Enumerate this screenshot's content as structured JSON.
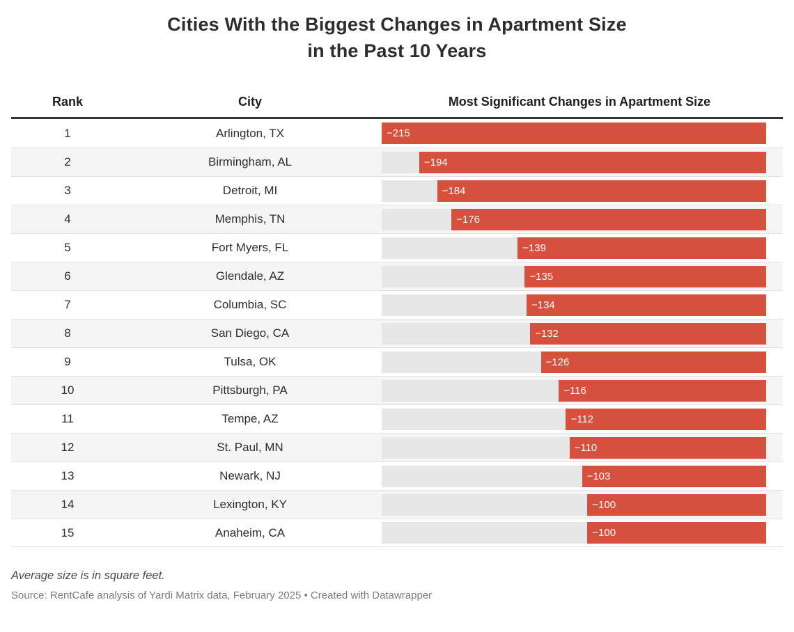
{
  "title": {
    "line1": "Cities With the Biggest Changes in Apartment Size",
    "line2": "in the Past 10 Years"
  },
  "table": {
    "columns": {
      "rank": "Rank",
      "city": "City",
      "bar": "Most Significant Changes in Apartment Size"
    }
  },
  "footer": {
    "note": "Average size is in square feet.",
    "source": "Source: RentCafe analysis of Yardi Matrix data, February 2025 • Created with Datawrapper"
  },
  "colors": {
    "bar": "#d5503d",
    "track": "#e7e7e7",
    "stripe": "#f5f5f5",
    "header_rule": "#333333"
  },
  "chart_data": {
    "type": "bar",
    "orientation": "horizontal",
    "title": "Cities With the Biggest Changes in Apartment Size in the Past 10 Years",
    "note": "Average size is in square feet.",
    "columns": [
      "Rank",
      "City",
      "Most Significant Changes in Apartment Size"
    ],
    "xlim": [
      -215,
      0
    ],
    "bars_right_aligned_to_zero": true,
    "rows": [
      {
        "rank": 1,
        "city": "Arlington, TX",
        "value": -215,
        "label": "−215"
      },
      {
        "rank": 2,
        "city": "Birmingham, AL",
        "value": -194,
        "label": "−194"
      },
      {
        "rank": 3,
        "city": "Detroit, MI",
        "value": -184,
        "label": "−184"
      },
      {
        "rank": 4,
        "city": "Memphis, TN",
        "value": -176,
        "label": "−176"
      },
      {
        "rank": 5,
        "city": "Fort Myers, FL",
        "value": -139,
        "label": "−139"
      },
      {
        "rank": 6,
        "city": "Glendale, AZ",
        "value": -135,
        "label": "−135"
      },
      {
        "rank": 7,
        "city": "Columbia, SC",
        "value": -134,
        "label": "−134"
      },
      {
        "rank": 8,
        "city": "San Diego, CA",
        "value": -132,
        "label": "−132"
      },
      {
        "rank": 9,
        "city": "Tulsa, OK",
        "value": -126,
        "label": "−126"
      },
      {
        "rank": 10,
        "city": "Pittsburgh, PA",
        "value": -116,
        "label": "−116"
      },
      {
        "rank": 11,
        "city": "Tempe, AZ",
        "value": -112,
        "label": "−112"
      },
      {
        "rank": 12,
        "city": "St. Paul, MN",
        "value": -110,
        "label": "−110"
      },
      {
        "rank": 13,
        "city": "Newark, NJ",
        "value": -103,
        "label": "−103"
      },
      {
        "rank": 14,
        "city": "Lexington, KY",
        "value": -100,
        "label": "−100"
      },
      {
        "rank": 15,
        "city": "Anaheim, CA",
        "value": -100,
        "label": "−100"
      }
    ]
  }
}
